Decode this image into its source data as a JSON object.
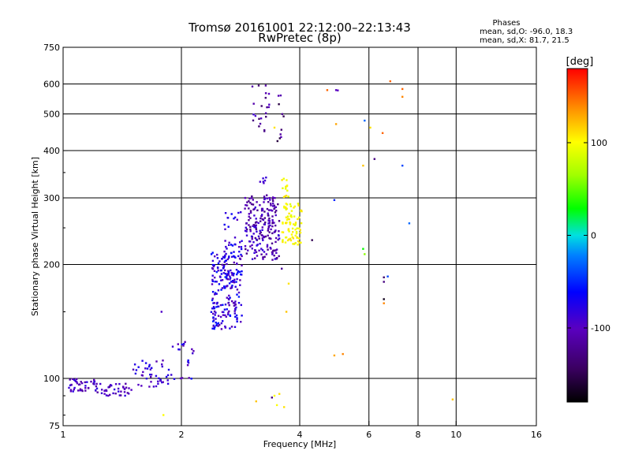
{
  "chart_data": {
    "type": "scatter",
    "title": "Tromsø 20161001 22:12:00–22:13:43",
    "subtitle": "RwPretec (8p)",
    "xlabel": "Frequency [MHz]",
    "ylabel": "Stationary phase Virtual Height [km]",
    "x_scale": "log",
    "y_scale": "log",
    "xlim": [
      1,
      16
    ],
    "ylim": [
      75,
      750
    ],
    "x_ticks": [
      1,
      2,
      4,
      6,
      8,
      10,
      16
    ],
    "x_tick_labels": [
      "1",
      "2",
      "4",
      "6",
      "8",
      "10",
      "16"
    ],
    "y_ticks": [
      75,
      100,
      200,
      300,
      400,
      500,
      600,
      750
    ],
    "y_tick_labels": [
      "75",
      "100",
      "200",
      "300",
      "400",
      "500",
      "600",
      "750"
    ],
    "x_gridlines": [
      2,
      4,
      6,
      8,
      10
    ],
    "y_gridlines": [
      100,
      200,
      300,
      400,
      500,
      600
    ],
    "stats": {
      "heading": "Phases",
      "line1": "mean, sd,O: -96.0, 18.3",
      "line2": "mean, sd,X:  81.7, 21.5"
    },
    "colorbar": {
      "label": "[deg]",
      "range": [
        -180,
        180
      ],
      "ticks": [
        100,
        0,
        -100
      ],
      "tick_labels": [
        "100",
        "0",
        "-100"
      ]
    },
    "clusters": [
      {
        "f": [
          1.03,
          1.22
        ],
        "h": [
          92,
          100
        ],
        "phase": [
          -115,
          -75
        ],
        "n": 45
      },
      {
        "f": [
          1.22,
          1.5
        ],
        "h": [
          90,
          97
        ],
        "phase": [
          -115,
          -80
        ],
        "n": 40
      },
      {
        "f": [
          1.5,
          1.9
        ],
        "h": [
          95,
          112
        ],
        "phase": [
          -110,
          -70
        ],
        "n": 45
      },
      {
        "f": [
          1.9,
          2.15
        ],
        "h": [
          98,
          125
        ],
        "phase": [
          -110,
          -60
        ],
        "n": 20
      },
      {
        "f": [
          2.38,
          2.85
        ],
        "h": [
          135,
          215
        ],
        "phase": [
          -110,
          -50
        ],
        "n": 220
      },
      {
        "f": [
          2.55,
          2.85
        ],
        "h": [
          200,
          275
        ],
        "phase": [
          -100,
          -60
        ],
        "n": 35
      },
      {
        "f": [
          2.9,
          3.55
        ],
        "h": [
          205,
          305
        ],
        "phase": [
          -130,
          -80
        ],
        "n": 210
      },
      {
        "f": [
          3.0,
          3.35
        ],
        "h": [
          450,
          595
        ],
        "phase": [
          -140,
          -90
        ],
        "n": 22
      },
      {
        "f": [
          3.5,
          3.65
        ],
        "h": [
          400,
          560
        ],
        "phase": [
          -160,
          -100
        ],
        "n": 10
      },
      {
        "f": [
          3.1,
          3.3
        ],
        "h": [
          325,
          350
        ],
        "phase": [
          -95,
          -85
        ],
        "n": 6
      },
      {
        "f": [
          3.6,
          4.05
        ],
        "h": [
          225,
          290
        ],
        "phase": [
          88,
          112
        ],
        "n": 80
      },
      {
        "f": [
          3.6,
          3.75
        ],
        "h": [
          280,
          345
        ],
        "phase": [
          90,
          115
        ],
        "n": 14
      }
    ],
    "sparse_points": [
      {
        "f": 1.78,
        "h": 150,
        "phase": -95
      },
      {
        "f": 1.8,
        "h": 80,
        "phase": 100
      },
      {
        "f": 4.7,
        "h": 578,
        "phase": 150
      },
      {
        "f": 4.95,
        "h": 578,
        "phase": -100
      },
      {
        "f": 5.0,
        "h": 577,
        "phase": -100
      },
      {
        "f": 4.95,
        "h": 470,
        "phase": 130
      },
      {
        "f": 5.85,
        "h": 480,
        "phase": -30
      },
      {
        "f": 6.05,
        "h": 460,
        "phase": 110
      },
      {
        "f": 6.5,
        "h": 445,
        "phase": 150
      },
      {
        "f": 6.8,
        "h": 610,
        "phase": 150
      },
      {
        "f": 7.3,
        "h": 582,
        "phase": 150
      },
      {
        "f": 7.3,
        "h": 555,
        "phase": 140
      },
      {
        "f": 6.2,
        "h": 380,
        "phase": -130
      },
      {
        "f": 5.8,
        "h": 365,
        "phase": 120
      },
      {
        "f": 7.3,
        "h": 365,
        "phase": -40
      },
      {
        "f": 4.9,
        "h": 296,
        "phase": -50
      },
      {
        "f": 7.6,
        "h": 257,
        "phase": -30
      },
      {
        "f": 5.8,
        "h": 220,
        "phase": 30
      },
      {
        "f": 5.85,
        "h": 213,
        "phase": 60
      },
      {
        "f": 4.3,
        "h": 232,
        "phase": -150
      },
      {
        "f": 6.55,
        "h": 185,
        "phase": -140
      },
      {
        "f": 6.55,
        "h": 180,
        "phase": -130
      },
      {
        "f": 6.7,
        "h": 186,
        "phase": -40
      },
      {
        "f": 6.55,
        "h": 162,
        "phase": -170
      },
      {
        "f": 6.55,
        "h": 158,
        "phase": 140
      },
      {
        "f": 3.6,
        "h": 195,
        "phase": -120
      },
      {
        "f": 3.75,
        "h": 178,
        "phase": 110
      },
      {
        "f": 4.9,
        "h": 115,
        "phase": 130
      },
      {
        "f": 5.15,
        "h": 116,
        "phase": 140
      },
      {
        "f": 3.45,
        "h": 90,
        "phase": 100
      },
      {
        "f": 3.55,
        "h": 91,
        "phase": 110
      },
      {
        "f": 3.5,
        "h": 85,
        "phase": 100
      },
      {
        "f": 3.1,
        "h": 87,
        "phase": 120
      },
      {
        "f": 3.65,
        "h": 84,
        "phase": 110
      },
      {
        "f": 3.4,
        "h": 89,
        "phase": -130
      },
      {
        "f": 9.8,
        "h": 88,
        "phase": 120
      },
      {
        "f": 3.45,
        "h": 460,
        "phase": 110
      },
      {
        "f": 3.7,
        "h": 150,
        "phase": 120
      }
    ],
    "colors": {
      "axes": "#000000",
      "gridline": "#000000",
      "background": "#ffffff"
    }
  }
}
